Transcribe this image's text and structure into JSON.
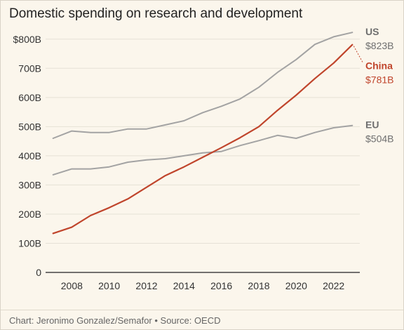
{
  "header": {
    "title": "Domestic spending on research and development"
  },
  "footer": {
    "credit": "Chart: Jeronimo Gonzalez/Semafor • Source: OECD"
  },
  "colors": {
    "gray_series": "#a3a3a3",
    "china_series": "#c0452c",
    "grid": "#e6e1d6",
    "axis": "#444444",
    "label_gray": "#6f6f6f"
  },
  "chart_data": {
    "type": "line",
    "x": [
      2007,
      2008,
      2009,
      2010,
      2011,
      2012,
      2013,
      2014,
      2015,
      2016,
      2017,
      2018,
      2019,
      2020,
      2021,
      2022,
      2023
    ],
    "ylim": [
      0,
      850
    ],
    "xlim": [
      2006.6,
      2023.4
    ],
    "yticks": [
      0,
      100,
      200,
      300,
      400,
      500,
      600,
      700,
      800
    ],
    "ytick_labels": [
      "0",
      "100B",
      "200B",
      "300B",
      "400B",
      "500B",
      "600B",
      "700B",
      "$800B"
    ],
    "xticks": [
      2008,
      2010,
      2012,
      2014,
      2016,
      2018,
      2020,
      2022
    ],
    "xtick_labels": [
      "2008",
      "2010",
      "2012",
      "2014",
      "2016",
      "2018",
      "2020",
      "2022"
    ],
    "grid": "horizontal",
    "series": [
      {
        "name": "US",
        "end_label": "$823B",
        "color": "#a3a3a3",
        "values": [
          460,
          485,
          480,
          480,
          492,
          492,
          506,
          520,
          548,
          570,
          595,
          635,
          686,
          730,
          782,
          808,
          823
        ]
      },
      {
        "name": "EU",
        "end_label": "$504B",
        "color": "#a3a3a3",
        "values": [
          335,
          355,
          355,
          362,
          378,
          386,
          390,
          400,
          410,
          415,
          435,
          452,
          470,
          460,
          480,
          496,
          504
        ]
      },
      {
        "name": "China",
        "end_label": "$781B",
        "color": "#c0452c",
        "values": [
          134,
          155,
          195,
          222,
          252,
          292,
          332,
          362,
          395,
          428,
          462,
          500,
          556,
          608,
          665,
          718,
          781
        ]
      }
    ]
  }
}
